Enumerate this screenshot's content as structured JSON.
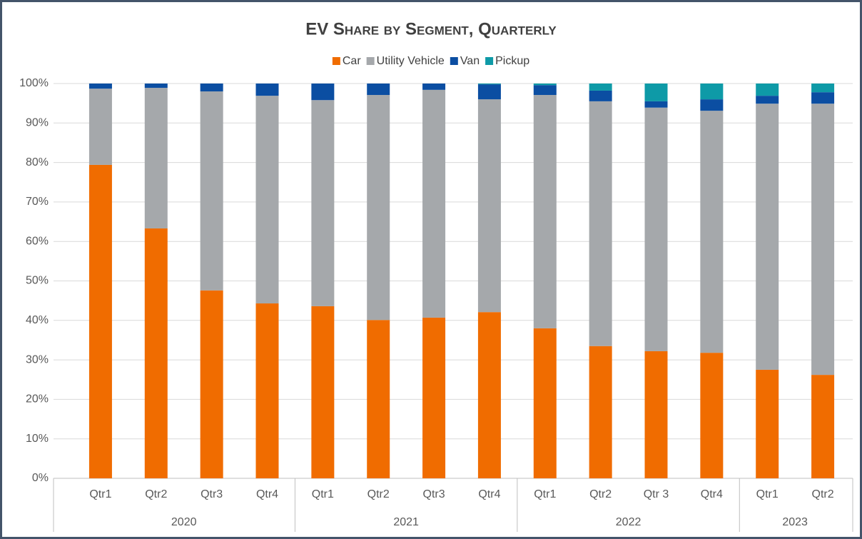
{
  "chart_data": {
    "type": "stacked_bar",
    "title": "EV Share by Segment, Quarterly",
    "groups": [
      {
        "label": "2020",
        "categories": [
          "Qtr1",
          "Qtr2",
          "Qtr3",
          "Qtr4"
        ]
      },
      {
        "label": "2021",
        "categories": [
          "Qtr1",
          "Qtr2",
          "Qtr3",
          "Qtr4"
        ]
      },
      {
        "label": "2022",
        "categories": [
          "Qtr1",
          "Qtr2",
          "Qtr 3",
          "Qtr4"
        ]
      },
      {
        "label": "2023",
        "categories": [
          "Qtr1",
          "Qtr2"
        ]
      }
    ],
    "series": [
      {
        "name": "Car",
        "color": "#f06c00",
        "values": [
          79.4,
          63.3,
          47.6,
          44.3,
          43.6,
          40.1,
          40.7,
          42.1,
          38.0,
          33.5,
          32.2,
          31.8,
          27.5,
          26.2
        ]
      },
      {
        "name": "Utility Vehicle",
        "color": "#a5a8ab",
        "values": [
          19.3,
          35.6,
          50.4,
          52.6,
          52.2,
          57.0,
          57.7,
          53.9,
          59.1,
          62.0,
          61.7,
          61.3,
          67.4,
          68.7
        ]
      },
      {
        "name": "Van",
        "color": "#0b4ea2",
        "values": [
          1.3,
          1.1,
          2.0,
          3.1,
          4.2,
          2.9,
          1.6,
          3.8,
          2.5,
          2.7,
          1.6,
          2.9,
          2.0,
          2.9
        ]
      },
      {
        "name": "Pickup",
        "color": "#0e9aa7",
        "values": [
          0,
          0,
          0,
          0,
          0,
          0,
          0,
          0.2,
          0.4,
          1.8,
          4.5,
          4.0,
          3.1,
          2.2
        ]
      }
    ],
    "ylim": [
      0,
      100
    ],
    "yticks": [
      {
        "value": 0,
        "label": "0%"
      },
      {
        "value": 10,
        "label": "10%"
      },
      {
        "value": 20,
        "label": "20%"
      },
      {
        "value": 30,
        "label": "30%"
      },
      {
        "value": 40,
        "label": "40%"
      },
      {
        "value": 50,
        "label": "50%"
      },
      {
        "value": 60,
        "label": "60%"
      },
      {
        "value": 70,
        "label": "70%"
      },
      {
        "value": 80,
        "label": "80%"
      },
      {
        "value": 90,
        "label": "90%"
      },
      {
        "value": 100,
        "label": "100%"
      }
    ],
    "grid": true,
    "legend": "top"
  }
}
